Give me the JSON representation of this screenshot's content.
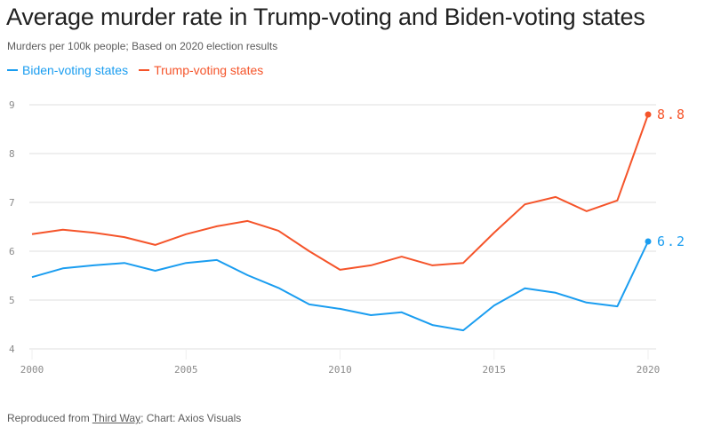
{
  "header": {
    "title": "Average murder rate in Trump-voting and Biden-voting states",
    "subtitle": "Murders per 100k people; Based on 2020 election results"
  },
  "legend": [
    {
      "label": "Biden-voting states",
      "color": "#1a9df0"
    },
    {
      "label": "Trump-voting states",
      "color": "#f5542a"
    }
  ],
  "footer": {
    "prefix": "Reproduced from ",
    "link_text": "Third Way",
    "suffix": "; Chart: Axios Visuals"
  },
  "chart_data": {
    "type": "line",
    "title": "Average murder rate in Trump-voting and Biden-voting states",
    "subtitle": "Murders per 100k people; Based on 2020 election results",
    "xlabel": "",
    "ylabel": "",
    "x": [
      2000,
      2001,
      2002,
      2003,
      2004,
      2005,
      2006,
      2007,
      2008,
      2009,
      2010,
      2011,
      2012,
      2013,
      2014,
      2015,
      2016,
      2017,
      2018,
      2019,
      2020
    ],
    "xlim": [
      2000,
      2020
    ],
    "ylim": [
      4,
      9
    ],
    "xticks": [
      2000,
      2005,
      2010,
      2015,
      2020
    ],
    "yticks": [
      4,
      5,
      6,
      7,
      8,
      9
    ],
    "grid": true,
    "legend_position": "top-left",
    "series": [
      {
        "name": "Biden-voting states",
        "color": "#1a9df0",
        "values": [
          5.47,
          5.65,
          5.71,
          5.76,
          5.6,
          5.76,
          5.82,
          5.51,
          5.25,
          4.91,
          4.82,
          4.69,
          4.75,
          4.49,
          4.38,
          4.89,
          5.24,
          5.15,
          4.95,
          4.87,
          6.2
        ],
        "end_label": "6.2"
      },
      {
        "name": "Trump-voting states",
        "color": "#f5542a",
        "values": [
          6.35,
          6.44,
          6.38,
          6.29,
          6.13,
          6.35,
          6.51,
          6.62,
          6.42,
          6.0,
          5.62,
          5.71,
          5.89,
          5.71,
          5.76,
          6.38,
          6.96,
          7.11,
          6.82,
          7.04,
          8.8
        ],
        "end_label": "8.8"
      }
    ],
    "annotations": [
      "8.8",
      "6.2"
    ]
  }
}
